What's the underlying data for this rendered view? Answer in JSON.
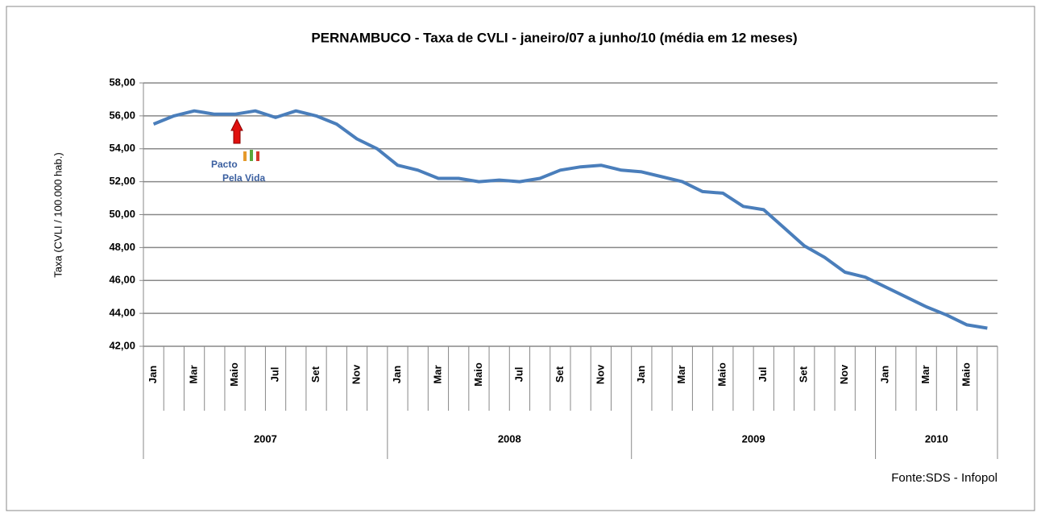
{
  "chart_data": {
    "type": "line",
    "title": "PERNAMBUCO - Taxa de CVLI -  janeiro/07 a junho/10 (média em 12 meses)",
    "y_label": "Taxa (CVLI / 100.000 hab.)",
    "source": "Fonte:SDS - Infopol",
    "annotations": [
      "Pacto",
      "Pela Vida"
    ],
    "categories": [
      "Jan",
      null,
      "Mar",
      null,
      "Maio",
      null,
      "Jul",
      null,
      "Set",
      null,
      "Nov",
      null,
      "Jan",
      null,
      "Mar",
      null,
      "Maio",
      null,
      "Jul",
      null,
      "Set",
      null,
      "Nov",
      null,
      "Jan",
      null,
      "Mar",
      null,
      "Maio",
      null,
      "Jul",
      null,
      "Set",
      null,
      "Nov",
      null,
      "Jan",
      null,
      "Mar",
      null,
      "Maio",
      null
    ],
    "years": [
      "2007",
      "2008",
      "2009",
      "2010"
    ],
    "series": [
      {
        "name": "Taxa de CVLI",
        "color": "#4a7ebb",
        "values": [
          55.5,
          56.0,
          56.3,
          56.1,
          56.1,
          56.3,
          55.9,
          56.3,
          56.0,
          55.5,
          54.6,
          54.0,
          53.0,
          52.7,
          52.2,
          52.2,
          52.0,
          52.1,
          52.0,
          52.2,
          52.7,
          52.9,
          53.0,
          52.7,
          52.6,
          52.3,
          52.0,
          51.4,
          51.3,
          50.5,
          50.3,
          49.2,
          48.1,
          47.4,
          46.5,
          46.2,
          45.6,
          45.0,
          44.4,
          43.9,
          43.3,
          43.1
        ]
      }
    ],
    "ylim": [
      42,
      58
    ],
    "yticks": [
      {
        "value": 42,
        "label": "42,00"
      },
      {
        "value": 44,
        "label": "44,00"
      },
      {
        "value": 46,
        "label": "46,00"
      },
      {
        "value": 48,
        "label": "48,00"
      },
      {
        "value": 50,
        "label": "50,00"
      },
      {
        "value": 52,
        "label": "52,00"
      },
      {
        "value": 54,
        "label": "54,00"
      },
      {
        "value": 56,
        "label": "56,00"
      },
      {
        "value": 58,
        "label": "58,00"
      }
    ],
    "grid": true
  }
}
